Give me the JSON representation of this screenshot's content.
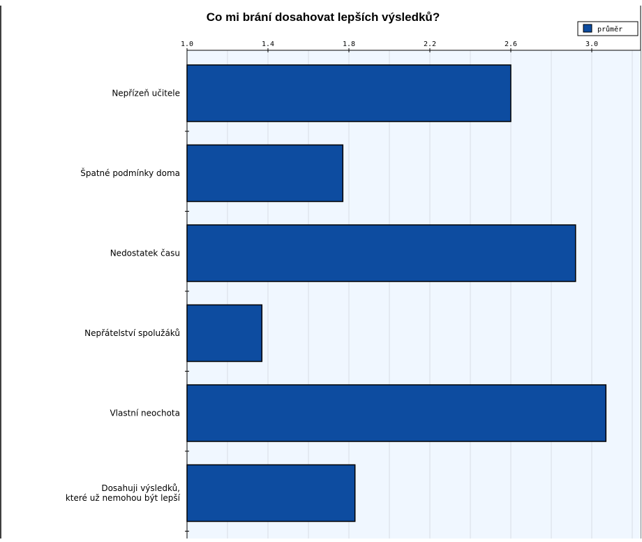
{
  "chart_data": {
    "type": "bar",
    "orientation": "horizontal",
    "title": "Co mi brání dosahovat lepších výsledků?",
    "xlabel": "",
    "ylabel": "",
    "xlim": [
      1.0,
      3.0
    ],
    "tick_labels": [
      "1.0",
      "1.4",
      "1.8",
      "2.2",
      "2.6",
      "3.0"
    ],
    "tick_values": [
      1.0,
      1.4,
      1.8,
      2.2,
      2.6,
      3.0
    ],
    "tick_position": "top",
    "grid": true,
    "legend_position": "top-right",
    "categories": [
      "Nepřízeň učitele",
      "Špatné podmínky doma",
      "Nedostatek času",
      "Nepřátelství spolužáků",
      "Vlastní neochota",
      "Dosahuji výsledků,\nkteré už nemohou být lepší"
    ],
    "series": [
      {
        "name": "průměr",
        "color": "#0d4ca0",
        "values": [
          2.6,
          1.77,
          2.92,
          1.37,
          3.07,
          1.83
        ]
      }
    ]
  },
  "colors": {
    "plot_background": "#f0f7ff",
    "grid": "#d8dde6",
    "bar_stroke": "#000000"
  }
}
